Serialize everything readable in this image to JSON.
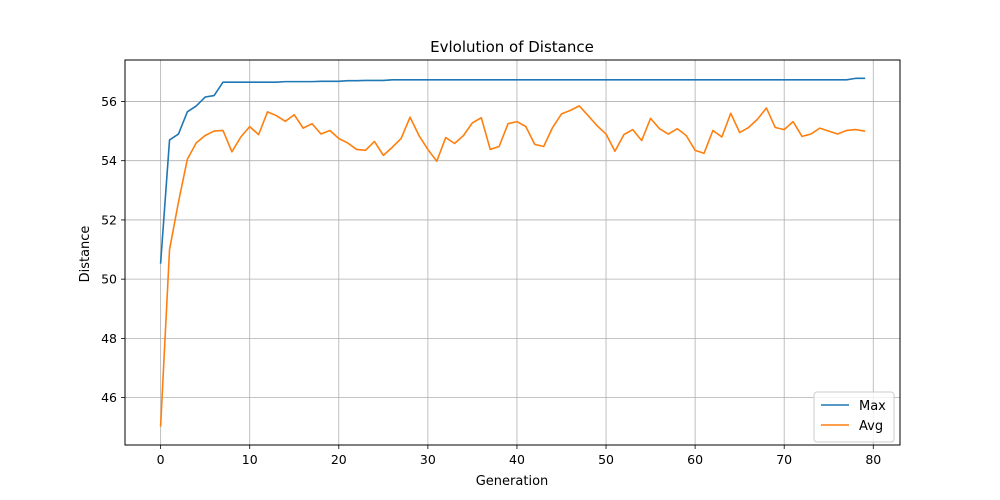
{
  "chart_data": {
    "type": "line",
    "title": "Evlolution of Distance",
    "xlabel": "Generation",
    "ylabel": "Distance",
    "xlim": [
      -4,
      83
    ],
    "ylim": [
      44.4,
      57.4
    ],
    "xticks": [
      0,
      10,
      20,
      30,
      40,
      50,
      60,
      70,
      80
    ],
    "yticks": [
      46,
      48,
      50,
      52,
      54,
      56
    ],
    "grid": true,
    "legend_position": "lower-right",
    "x": [
      0,
      1,
      2,
      3,
      4,
      5,
      6,
      7,
      8,
      9,
      10,
      11,
      12,
      13,
      14,
      15,
      16,
      17,
      18,
      19,
      20,
      21,
      22,
      23,
      24,
      25,
      26,
      27,
      28,
      29,
      30,
      31,
      32,
      33,
      34,
      35,
      36,
      37,
      38,
      39,
      40,
      41,
      42,
      43,
      44,
      45,
      46,
      47,
      48,
      49,
      50,
      51,
      52,
      53,
      54,
      55,
      56,
      57,
      58,
      59,
      60,
      61,
      62,
      63,
      64,
      65,
      66,
      67,
      68,
      69,
      70,
      71,
      72,
      73,
      74,
      75,
      76,
      77,
      78,
      79
    ],
    "series": [
      {
        "name": "Max",
        "color": "#1f77b4",
        "values": [
          50.55,
          54.7,
          54.9,
          55.65,
          55.85,
          56.15,
          56.2,
          56.65,
          56.65,
          56.65,
          56.65,
          56.65,
          56.65,
          56.65,
          56.67,
          56.67,
          56.67,
          56.67,
          56.68,
          56.68,
          56.68,
          56.7,
          56.7,
          56.71,
          56.71,
          56.71,
          56.73,
          56.73,
          56.73,
          56.73,
          56.73,
          56.73,
          56.73,
          56.73,
          56.73,
          56.73,
          56.73,
          56.73,
          56.73,
          56.73,
          56.73,
          56.73,
          56.73,
          56.73,
          56.73,
          56.73,
          56.73,
          56.73,
          56.73,
          56.73,
          56.73,
          56.73,
          56.73,
          56.73,
          56.73,
          56.73,
          56.73,
          56.73,
          56.73,
          56.73,
          56.73,
          56.73,
          56.73,
          56.73,
          56.73,
          56.73,
          56.73,
          56.73,
          56.73,
          56.73,
          56.73,
          56.73,
          56.73,
          56.73,
          56.73,
          56.73,
          56.73,
          56.73,
          56.78,
          56.78
        ]
      },
      {
        "name": "Avg",
        "color": "#ff7f0e",
        "values": [
          45.05,
          51.0,
          52.6,
          54.05,
          54.6,
          54.85,
          55.0,
          55.02,
          54.3,
          54.8,
          55.15,
          54.88,
          55.65,
          55.52,
          55.33,
          55.55,
          55.1,
          55.25,
          54.9,
          55.02,
          54.75,
          54.6,
          54.38,
          54.35,
          54.65,
          54.18,
          54.45,
          54.75,
          55.47,
          54.85,
          54.38,
          53.98,
          54.78,
          54.58,
          54.85,
          55.28,
          55.45,
          54.38,
          54.48,
          55.25,
          55.32,
          55.15,
          54.55,
          54.48,
          55.12,
          55.58,
          55.7,
          55.85,
          55.52,
          55.18,
          54.9,
          54.32,
          54.88,
          55.05,
          54.68,
          55.43,
          55.08,
          54.9,
          55.08,
          54.85,
          54.35,
          54.25,
          55.02,
          54.8,
          55.6,
          54.95,
          55.12,
          55.4,
          55.78,
          55.12,
          55.05,
          55.32,
          54.82,
          54.9,
          55.1,
          55.0,
          54.9,
          55.02,
          55.05,
          55.0
        ]
      }
    ]
  }
}
